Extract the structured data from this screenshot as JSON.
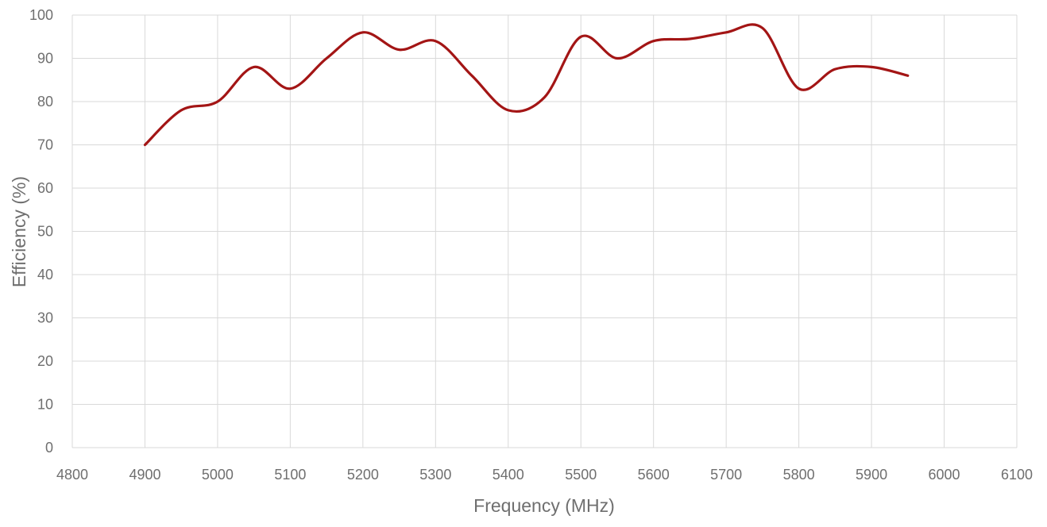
{
  "chart_data": {
    "type": "line",
    "title": "",
    "xlabel": "Frequency (MHz)",
    "ylabel": "Efficiency (%)",
    "xlim": [
      4800,
      6100
    ],
    "ylim": [
      0,
      100
    ],
    "x_ticks": [
      4800,
      4900,
      5000,
      5100,
      5200,
      5300,
      5400,
      5500,
      5600,
      5700,
      5800,
      5900,
      6000,
      6100
    ],
    "y_ticks": [
      0,
      10,
      20,
      30,
      40,
      50,
      60,
      70,
      80,
      90,
      100
    ],
    "grid": true,
    "legend": "none",
    "smooth": true,
    "series": [
      {
        "color": "#a31515",
        "x": [
          4900,
          4950,
          5000,
          5050,
          5100,
          5150,
          5200,
          5250,
          5300,
          5350,
          5400,
          5450,
          5500,
          5550,
          5600,
          5650,
          5700,
          5750,
          5800,
          5850,
          5900,
          5950
        ],
        "y": [
          70,
          78,
          80,
          88,
          83,
          90,
          96,
          92,
          94,
          86,
          78,
          81,
          95,
          90,
          94,
          94.5,
          96,
          97,
          83,
          87.5,
          88,
          86
        ]
      }
    ]
  }
}
